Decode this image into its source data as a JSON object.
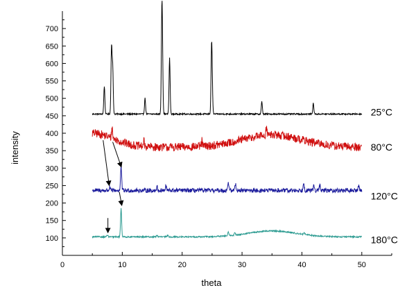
{
  "chart_data": {
    "type": "line",
    "title": "",
    "xlabel": "theta",
    "ylabel": "intensity",
    "xlim": [
      0,
      55
    ],
    "ylim": [
      50,
      750
    ],
    "x_ticks": [
      0,
      10,
      20,
      30,
      40,
      50
    ],
    "y_ticks": [
      100,
      150,
      200,
      250,
      300,
      350,
      400,
      450,
      500,
      550,
      600,
      650,
      700
    ],
    "grid": false,
    "x_range_data": [
      5,
      50
    ],
    "series": [
      {
        "name": "25°C",
        "color": "#000000",
        "baseline": 455,
        "noise": 2,
        "peaks": [
          [
            7.0,
            80
          ],
          [
            8.2,
            190
          ],
          [
            8.4,
            130
          ],
          [
            13.8,
            45
          ],
          [
            16.6,
            230
          ],
          [
            16.7,
            150
          ],
          [
            17.9,
            160
          ],
          [
            24.9,
            155
          ],
          [
            25.0,
            85
          ],
          [
            33.3,
            35
          ],
          [
            41.9,
            30
          ]
        ]
      },
      {
        "name": "80°C",
        "color": "#d01010",
        "baseline": 360,
        "noise": 12,
        "humps": [
          [
            5.0,
            40,
            3.5
          ],
          [
            35.0,
            35,
            5.0
          ]
        ],
        "peaks": [
          [
            8.3,
            30
          ],
          [
            13.6,
            15
          ],
          [
            23.3,
            15
          ],
          [
            34.1,
            25
          ]
        ]
      },
      {
        "name": "120°C",
        "color": "#1b1b9c",
        "baseline": 236,
        "noise": 6,
        "peaks": [
          [
            7.9,
            8
          ],
          [
            9.8,
            70
          ],
          [
            15.8,
            10
          ],
          [
            17.3,
            12
          ],
          [
            27.7,
            25
          ],
          [
            28.9,
            20
          ],
          [
            40.3,
            25
          ],
          [
            42.0,
            15
          ],
          [
            43.0,
            15
          ],
          [
            49.5,
            15
          ]
        ]
      },
      {
        "name": "180°C",
        "color": "#2a9a90",
        "baseline": 103,
        "noise": 2,
        "humps": [
          [
            35.0,
            17,
            4.0
          ]
        ],
        "peaks": [
          [
            7.5,
            5
          ],
          [
            9.8,
            82
          ],
          [
            15.8,
            5
          ],
          [
            17.6,
            5
          ],
          [
            27.7,
            10
          ],
          [
            28.8,
            8
          ],
          [
            40.4,
            6
          ]
        ]
      }
    ],
    "annotations": [
      {
        "type": "arrow",
        "from": [
          6.8,
          380
        ],
        "to": [
          7.8,
          252
        ]
      },
      {
        "type": "arrow",
        "from": [
          8.4,
          375
        ],
        "to": [
          9.8,
          305
        ]
      },
      {
        "type": "arrow",
        "from": [
          7.6,
          157
        ],
        "to": [
          7.6,
          117
        ]
      },
      {
        "type": "arrow",
        "from": [
          9.5,
          232
        ],
        "to": [
          9.9,
          195
        ]
      }
    ],
    "series_label_positions": [
      {
        "x": 51.5,
        "y": 461
      },
      {
        "x": 51.5,
        "y": 360
      },
      {
        "x": 51.5,
        "y": 220
      },
      {
        "x": 51.5,
        "y": 95
      }
    ]
  }
}
